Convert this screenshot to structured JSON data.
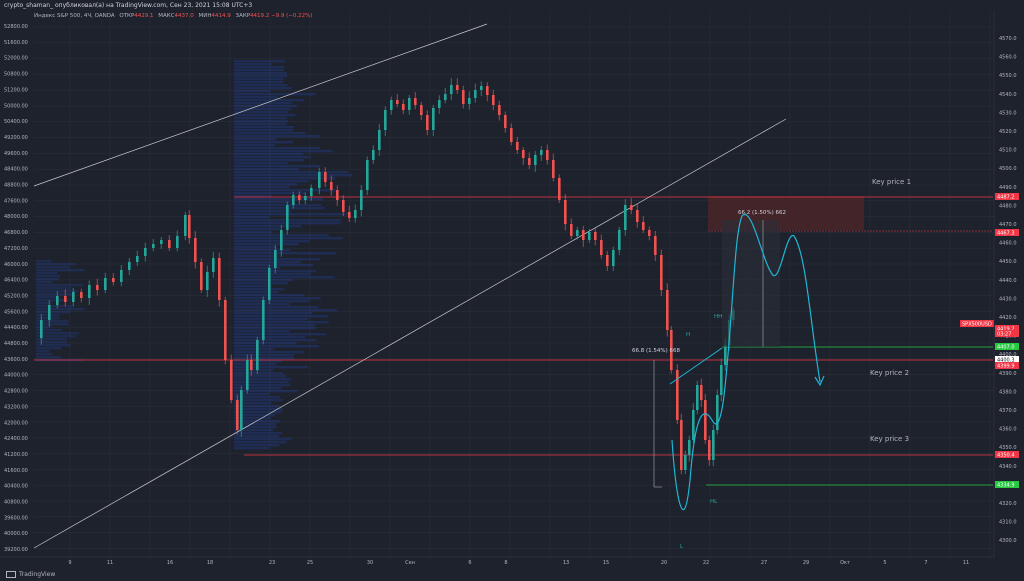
{
  "title_bar": "crypto_shaman_ опубликовал(а) на TradingView.com, Сен 23, 2021 15:08 UTC+3",
  "legend": {
    "symbol": "Индекс S&P 500, 4Ч, OANDA",
    "open_label": "ОТКР",
    "open": "4429.1",
    "high_label": "МАКС",
    "high": "4437.0",
    "low_label": "МИН",
    "low": "4414.9",
    "close_label": "ЗАКР",
    "close": "4419.2",
    "change": "−9.9 (−0.22%)"
  },
  "footer": {
    "brand": "TradingView"
  },
  "left_axis": {
    "labels": [
      "52800.00",
      "52000.00",
      "51200.00",
      "50400.00",
      "49600.00",
      "48800.00",
      "48000.00",
      "47200.00",
      "46400.00",
      "45600.00",
      "44800.00",
      "44000.00",
      "43200.00",
      "42400.00",
      "41600.00",
      "40800.00",
      "40000.00",
      "39200.00"
    ],
    "labels_b": [
      "51600.00",
      "50800.00",
      "50000.00",
      "49200.00",
      "48400.00",
      "47600.00",
      "46800.00",
      "46000.00",
      "45200.00",
      "44400.00",
      "43600.00",
      "42800.00",
      "42000.00",
      "41200.00",
      "40400.00",
      "39600.00"
    ]
  },
  "right_axis": {
    "labels": [
      "4570.0",
      "4560.0",
      "4550.0",
      "4540.0",
      "4530.0",
      "4520.0",
      "4510.0",
      "4500.0",
      "4490.0",
      "4480.0",
      "4470.0",
      "4460.0",
      "4450.0",
      "4440.0",
      "4430.0",
      "4420.0",
      "4410.0",
      "4400.0",
      "4390.0",
      "4380.0",
      "4370.0",
      "4360.0",
      "4350.0",
      "4340.0",
      "4330.0",
      "4320.0",
      "4310.0",
      "4300.0"
    ]
  },
  "price_tags": [
    {
      "text": "4487.2",
      "color": "#f23645"
    },
    {
      "text": "4467.3",
      "color": "#f23645"
    },
    {
      "text": "SPX500USD",
      "color": "#f23645"
    },
    {
      "text": "4419.2",
      "color": "#f23645"
    },
    {
      "text": "03:27",
      "color": "#f23645"
    },
    {
      "text": "4407.0",
      "color": "#26c940"
    },
    {
      "text": "4400.3",
      "color": "#ffffff"
    },
    {
      "text": "4399.9",
      "color": "#f23645"
    },
    {
      "text": "4350.4",
      "color": "#f23645"
    },
    {
      "text": "4334.9",
      "color": "#26c940"
    }
  ],
  "time_axis": [
    "9",
    "11",
    "16",
    "18",
    "23",
    "25",
    "30",
    "Сен",
    "6",
    "8",
    "13",
    "15",
    "20",
    "22",
    "27",
    "29",
    "Окт",
    "5",
    "7",
    "11",
    "6"
  ],
  "annotations": {
    "key_price_1": "Key price 1",
    "key_price_2": "Key price 2",
    "key_price_3": "Key price 3",
    "measure_left": "66.8 (1.54%) 668",
    "measure_right": "66.2 (1.50%) 662",
    "wave_hh": "HH",
    "wave_h": "H",
    "wave_hl": "HL",
    "wave_l": "L"
  },
  "colors": {
    "background": "#1e222d",
    "up_candle": "#26a69a",
    "down_candle": "#ef5350",
    "level_line": "#f23645",
    "green_line": "#26c940",
    "forecast_path": "#1fb6d5",
    "channel": "#c7c9cf"
  }
}
